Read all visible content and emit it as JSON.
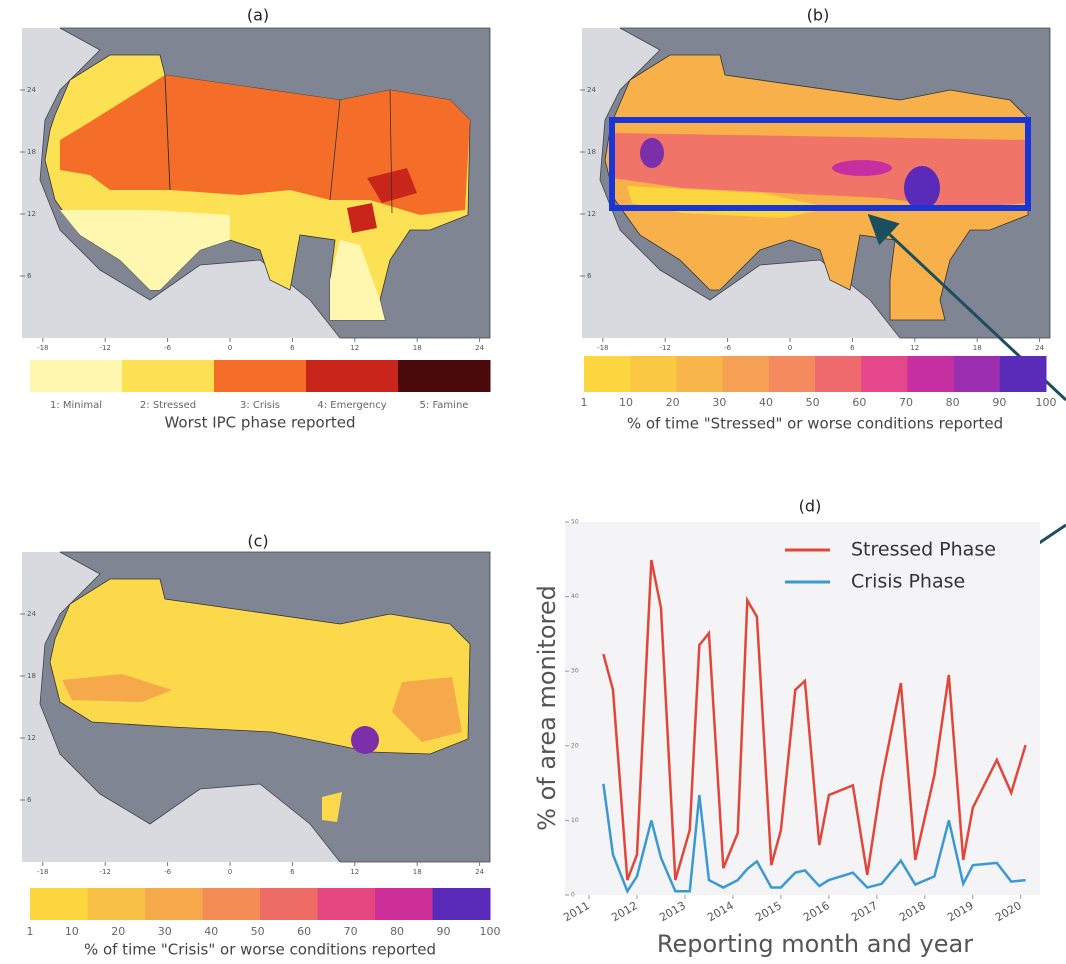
{
  "maps": [
    {
      "label": "(a)",
      "xlim": [
        -20,
        25
      ],
      "ylim": [
        0,
        30
      ],
      "xticks": [
        -18,
        -12,
        -6,
        0,
        6,
        12,
        18,
        24
      ],
      "yticks": [
        24,
        18,
        12,
        6
      ],
      "colorbar": {
        "title": "Worst IPC phase reported",
        "labels": [
          "1: Minimal",
          "2: Stressed",
          "3: Crisis",
          "4: Emergency",
          "5: Famine"
        ],
        "colors": [
          "#fff7b0",
          "#fde154",
          "#f46e2a",
          "#c9261b",
          "#4a0a0a"
        ]
      }
    },
    {
      "label": "(b)",
      "xlim": [
        -20,
        25
      ],
      "ylim": [
        0,
        30
      ],
      "xticks": [
        -18,
        -12,
        -6,
        0,
        6,
        12,
        18,
        24
      ],
      "yticks": [
        24,
        18,
        12,
        6
      ],
      "colorbar": {
        "title": "% of time \"Stressed\" or worse conditions reported",
        "lim": [
          1,
          100
        ],
        "ticks": [
          1,
          10,
          20,
          30,
          40,
          50,
          60,
          70,
          80,
          90,
          100
        ],
        "colors": [
          "#fbd63f",
          "#fac843",
          "#f8b54a",
          "#f5a052",
          "#f48a5e",
          "#ef6a6c",
          "#e4478a",
          "#c62fa0",
          "#9b2fb0",
          "#5a2ab8"
        ]
      }
    },
    {
      "label": "(c)",
      "xlim": [
        -20,
        25
      ],
      "ylim": [
        0,
        30
      ],
      "xticks": [
        -18,
        -12,
        -6,
        0,
        6,
        12,
        18,
        24
      ],
      "yticks": [
        24,
        18,
        12,
        6
      ],
      "colorbar": {
        "title": "% of time \"Crisis\" or worse conditions reported",
        "lim": [
          1,
          100
        ],
        "ticks": [
          1,
          10,
          20,
          30,
          40,
          50,
          60,
          70,
          80,
          90,
          100
        ],
        "colors": [
          "#fbd63f",
          "#f8c045",
          "#f6a94a",
          "#f38d55",
          "#ee6c66",
          "#e6477e",
          "#cc2f98",
          "#5a2ab8"
        ]
      }
    }
  ],
  "chart_data": {
    "type": "line",
    "title": "(d)",
    "x_label": "Reporting month and year",
    "y_label": "% of area monitored",
    "x": [
      2011.3,
      2011.5,
      2011.8,
      2012.0,
      2012.3,
      2012.5,
      2012.8,
      2013.1,
      2013.3,
      2013.5,
      2013.8,
      2014.1,
      2014.3,
      2014.5,
      2014.8,
      2015.0,
      2015.3,
      2015.5,
      2015.8,
      2016.0,
      2016.5,
      2016.8,
      2017.1,
      2017.5,
      2017.8,
      2018.2,
      2018.5,
      2018.8,
      2019.0,
      2019.5,
      2019.8,
      2020.1
    ],
    "series": [
      {
        "name": "Stressed Phase",
        "color": "#e0473a",
        "values": [
          32.3,
          27.5,
          2,
          5.4,
          44.9,
          38.5,
          2,
          8.7,
          33.5,
          35.1,
          3.6,
          8.3,
          39.5,
          37.3,
          4,
          8.7,
          27.5,
          28.7,
          6.7,
          13.4,
          14.7,
          2.7,
          15.4,
          28.4,
          4.7,
          16.1,
          29.5,
          4.7,
          11.7,
          18.1,
          13.7,
          20.1
        ]
      },
      {
        "name": "Crisis Phase",
        "color": "#3a9ad0",
        "values": [
          14.9,
          5.4,
          0.5,
          2.5,
          10,
          5,
          0.5,
          0.5,
          13.4,
          2,
          1,
          2,
          3.5,
          4.5,
          1,
          1,
          3,
          3.3,
          1.2,
          2,
          3,
          1,
          1.5,
          4.6,
          1.4,
          2.5,
          10,
          1.5,
          4,
          4.3,
          1.8,
          2
        ]
      }
    ],
    "xlim": [
      2010.5,
      2020.4
    ],
    "ylim": [
      0,
      50
    ],
    "xticks": [
      2011,
      2012,
      2013,
      2014,
      2015,
      2016,
      2017,
      2018,
      2019,
      2020
    ],
    "yticks": [
      0,
      10,
      20,
      30,
      40,
      50
    ],
    "legend": "upper right"
  }
}
